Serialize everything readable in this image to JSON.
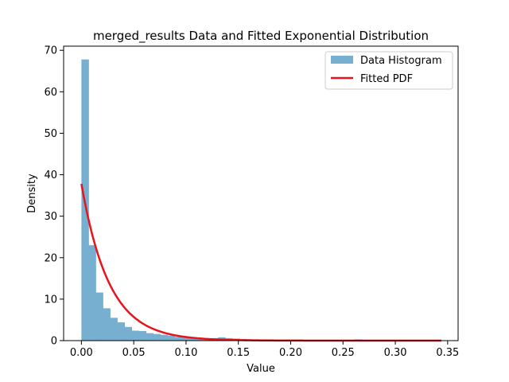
{
  "chart_data": {
    "type": "bar",
    "title": "merged_results Data and Fitted Exponential Distribution",
    "xlabel": "Value",
    "ylabel": "Density",
    "xlim": [
      -0.017,
      0.36
    ],
    "ylim": [
      0,
      71
    ],
    "xticks": [
      0.0,
      0.05,
      0.1,
      0.15,
      0.2,
      0.25,
      0.3,
      0.35
    ],
    "xtick_labels": [
      "0.00",
      "0.05",
      "0.10",
      "0.15",
      "0.20",
      "0.25",
      "0.30",
      "0.35"
    ],
    "yticks": [
      0,
      10,
      20,
      30,
      40,
      50,
      60,
      70
    ],
    "ytick_labels": [
      "0",
      "10",
      "20",
      "30",
      "40",
      "50",
      "60",
      "70"
    ],
    "grid": false,
    "legend_position": "top-right",
    "histogram": {
      "name": "Data Histogram",
      "color": "#77afd1",
      "bin_start": 0.0,
      "bin_width": 0.00687,
      "values": [
        67.8,
        23.0,
        11.6,
        7.8,
        5.5,
        4.4,
        3.3,
        2.4,
        2.3,
        1.8,
        1.6,
        1.4,
        1.2,
        0.9,
        0.8,
        0.8,
        0.6,
        0.5,
        0.6,
        0.8,
        0.6,
        0.5,
        0.4,
        0.3,
        0.2,
        0.3,
        0.2,
        0.2,
        0.15,
        0.15,
        0.1,
        0.1,
        0.1,
        0.1,
        0.1,
        0.1,
        0.1,
        0.1,
        0.3,
        0.1,
        0.1,
        0.1,
        0.05,
        0.05,
        0.05,
        0.05,
        0.05,
        0.05,
        0.05,
        0.05
      ]
    },
    "fitted_pdf": {
      "name": "Fitted PDF",
      "color": "#e8141b",
      "distribution": "exponential",
      "rate": 37.8,
      "x_range": [
        0.0,
        0.344
      ]
    }
  }
}
